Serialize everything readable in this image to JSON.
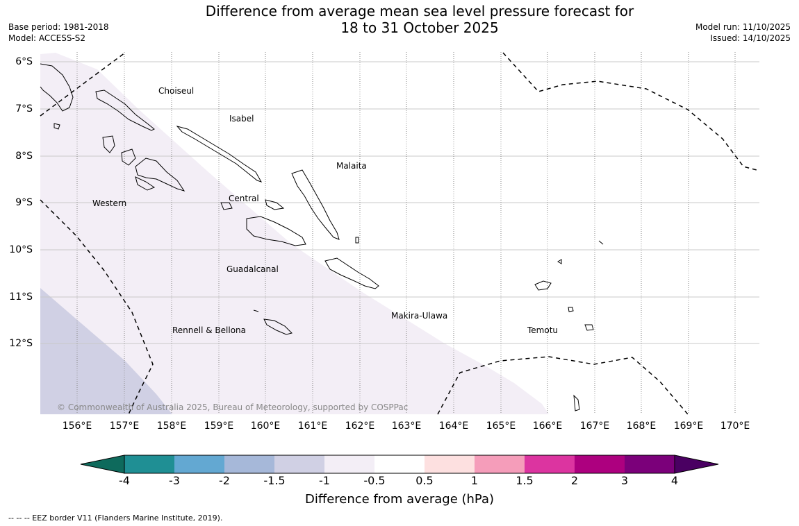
{
  "title": {
    "line1": "Difference from average mean sea level pressure forecast for",
    "line2": "18 to 31 October 2025"
  },
  "meta": {
    "base_period": "Base period: 1981-2018",
    "model": "Model: ACCESS-S2",
    "model_run": "Model run: 11/10/2025",
    "issued": "Issued: 14/10/2025"
  },
  "map": {
    "lat_labels": [
      "6°S",
      "7°S",
      "8°S",
      "9°S",
      "10°S",
      "11°S",
      "12°S"
    ],
    "lon_labels": [
      "156°E",
      "157°E",
      "158°E",
      "159°E",
      "160°E",
      "161°E",
      "162°E",
      "163°E",
      "164°E",
      "165°E",
      "166°E",
      "167°E",
      "168°E",
      "169°E",
      "170°E"
    ],
    "regions": [
      "Choiseul",
      "Isabel",
      "Malaita",
      "Western",
      "Central",
      "Guadalcanal",
      "Makira-Ulawa",
      "Rennell & Bellona",
      "Temotu"
    ],
    "copyright": "© Commonwealth of Australia 2025, Bureau of Meteorology, supported by COSPPac"
  },
  "colorbar": {
    "ticks": [
      "-4",
      "-3",
      "-2",
      "-1.5",
      "-1",
      "-0.5",
      "0.5",
      "1",
      "1.5",
      "2",
      "3",
      "4"
    ],
    "colors": [
      "#1f8f94",
      "#63a8d2",
      "#a6b8d9",
      "#d0d0e4",
      "#f3eef6",
      "#ffffff",
      "#fde0e0",
      "#f59dba",
      "#dc34a0",
      "#ad007f",
      "#7b007a"
    ],
    "low_extend_color": "#0e6a5c",
    "high_extend_color": "#4a0062",
    "label": "Difference from average (hPa)"
  },
  "legend": {
    "eez": "--  --  -- EEZ border V11 (Flanders Marine Institute, 2019)."
  }
}
